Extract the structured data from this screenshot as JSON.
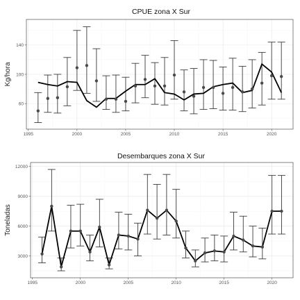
{
  "chart_data": [
    {
      "type": "line",
      "title": "CPUE zona X Sur",
      "xlabel": "",
      "ylabel": "Kg/hora",
      "xlim": [
        1994.8,
        2022.2
      ],
      "ylim": [
        25,
        175
      ],
      "x_ticks": [
        1995,
        2000,
        2005,
        2010,
        2015,
        2020
      ],
      "y_ticks": [
        60,
        100,
        140
      ],
      "grid": true,
      "series": [
        {
          "type": "errorbar",
          "x": [
            1996,
            1997,
            1998,
            1999,
            2000,
            2001,
            2002,
            2003,
            2004,
            2005,
            2006,
            2007,
            2008,
            2009,
            2010,
            2011,
            2012,
            2013,
            2014,
            2015,
            2016,
            2017,
            2018,
            2019,
            2020,
            2021
          ],
          "y": [
            50,
            67,
            68,
            83,
            109,
            112,
            91,
            66,
            66,
            63,
            84,
            93,
            84,
            84,
            99,
            76,
            70,
            82,
            82,
            74,
            82,
            76,
            80,
            88,
            98,
            97
          ],
          "lower": [
            34,
            48,
            47,
            57,
            78,
            74,
            63,
            52,
            48,
            50,
            61,
            68,
            59,
            58,
            66,
            50,
            46,
            52,
            53,
            51,
            51,
            49,
            54,
            58,
            66,
            66
          ],
          "upper": [
            75,
            99,
            100,
            123,
            160,
            165,
            135,
            98,
            99,
            96,
            115,
            126,
            116,
            123,
            146,
            106,
            108,
            120,
            119,
            110,
            122,
            111,
            120,
            130,
            144,
            144
          ]
        },
        {
          "type": "line",
          "x": [
            1996,
            1997,
            1998,
            1999,
            2000,
            2001,
            2002,
            2003,
            2004,
            2005,
            2006,
            2007,
            2008,
            2009,
            2010,
            2011,
            2012,
            2013,
            2014,
            2015,
            2016,
            2017,
            2018,
            2019,
            2020,
            2021
          ],
          "y": [
            89,
            86,
            84,
            90,
            89,
            64,
            55,
            67,
            67,
            77,
            86,
            86,
            94,
            75,
            73,
            65,
            73,
            74,
            83,
            86,
            88,
            75,
            78,
            114,
            103,
            75
          ]
        }
      ]
    },
    {
      "type": "line",
      "title": "Desembarques zona X Sur",
      "xlabel": "",
      "ylabel": "Toneladas",
      "xlim": [
        1994.8,
        2022.2
      ],
      "ylim": [
        800,
        12400
      ],
      "x_ticks": [
        1995,
        2000,
        2005,
        2010,
        2015,
        2020
      ],
      "y_ticks": [
        3000,
        6000,
        9000,
        12000
      ],
      "y_tick_labels": [
        "3000",
        "6000",
        "9000",
        "12000"
      ],
      "grid": true,
      "series": [
        {
          "type": "errorbar",
          "x": [
            1996,
            1997,
            1998,
            1999,
            2000,
            2001,
            2002,
            2003,
            2004,
            2005,
            2006,
            2007,
            2008,
            2009,
            2010,
            2011,
            2012,
            2013,
            2014,
            2015,
            2016,
            2017,
            2018,
            2019,
            2020,
            2021
          ],
          "y": [
            3200,
            8000,
            1900,
            5500,
            5500,
            3400,
            5900,
            2100,
            5100,
            5000,
            4700,
            7600,
            6800,
            7600,
            6500,
            3800,
            2500,
            3300,
            3500,
            3400,
            5000,
            4600,
            4000,
            3900,
            7500,
            7500
          ],
          "lower": [
            2300,
            5500,
            1500,
            3800,
            4000,
            2500,
            3900,
            1700,
            3700,
            3600,
            3000,
            5200,
            4700,
            5100,
            4800,
            2800,
            1900,
            2400,
            2500,
            2400,
            3600,
            3400,
            2900,
            2700,
            5200,
            5200
          ],
          "upper": [
            4900,
            11700,
            2800,
            8100,
            8200,
            5100,
            8700,
            2800,
            7400,
            7200,
            6300,
            11200,
            10200,
            11200,
            9700,
            5500,
            3600,
            4800,
            5100,
            5000,
            7400,
            7000,
            6000,
            5800,
            11100,
            11100
          ]
        },
        {
          "type": "line",
          "x": [
            1996,
            1997,
            1998,
            1999,
            2000,
            2001,
            2002,
            2003,
            2004,
            2005,
            2006,
            2007,
            2008,
            2009,
            2010,
            2011,
            2012,
            2013,
            2014,
            2015,
            2016,
            2017,
            2018,
            2019,
            2020,
            2021
          ],
          "y": [
            3200,
            8000,
            1900,
            5500,
            5500,
            3400,
            5900,
            2100,
            5100,
            5000,
            4700,
            7600,
            6800,
            7600,
            6500,
            3800,
            2500,
            3300,
            3500,
            3400,
            5000,
            4600,
            4000,
            3900,
            7500,
            7500
          ]
        }
      ]
    }
  ]
}
